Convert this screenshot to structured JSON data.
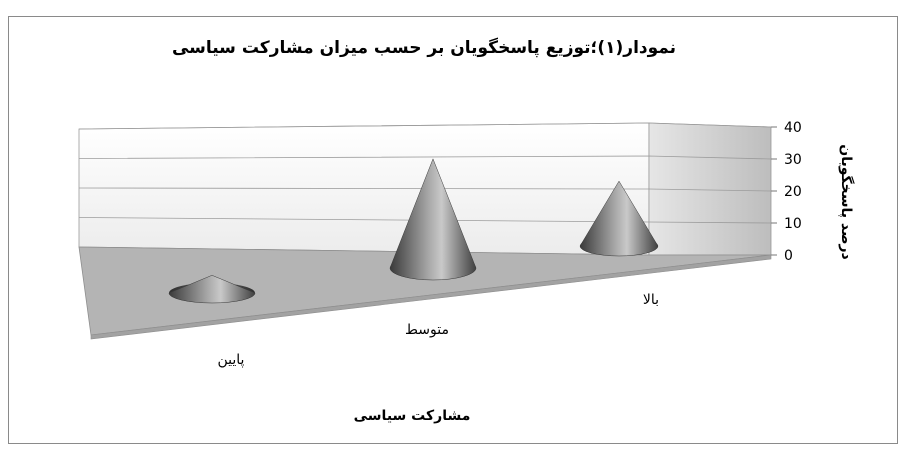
{
  "chart_data": {
    "type": "bar",
    "style": "3d-cone",
    "title": "نمودار(۱)؛توزیع پاسخگویان بر حسب میزان مشارکت سیاسی",
    "xlabel": "مشارکت سیاسی",
    "ylabel": "درصد پاسخگویان",
    "categories": [
      "پايين",
      "متوسط",
      "بالا"
    ],
    "values": [
      6,
      37,
      22
    ],
    "yticks": [
      0,
      10,
      20,
      30,
      40
    ],
    "ylim": [
      0,
      40
    ],
    "grid": true,
    "colors": {
      "cone_dark": "#3c3c3c",
      "cone_light": "#c8c8c8",
      "floor": "#b4b4b4",
      "wall": "#f2f2f2",
      "side_wall": "#c6c6c6"
    }
  }
}
